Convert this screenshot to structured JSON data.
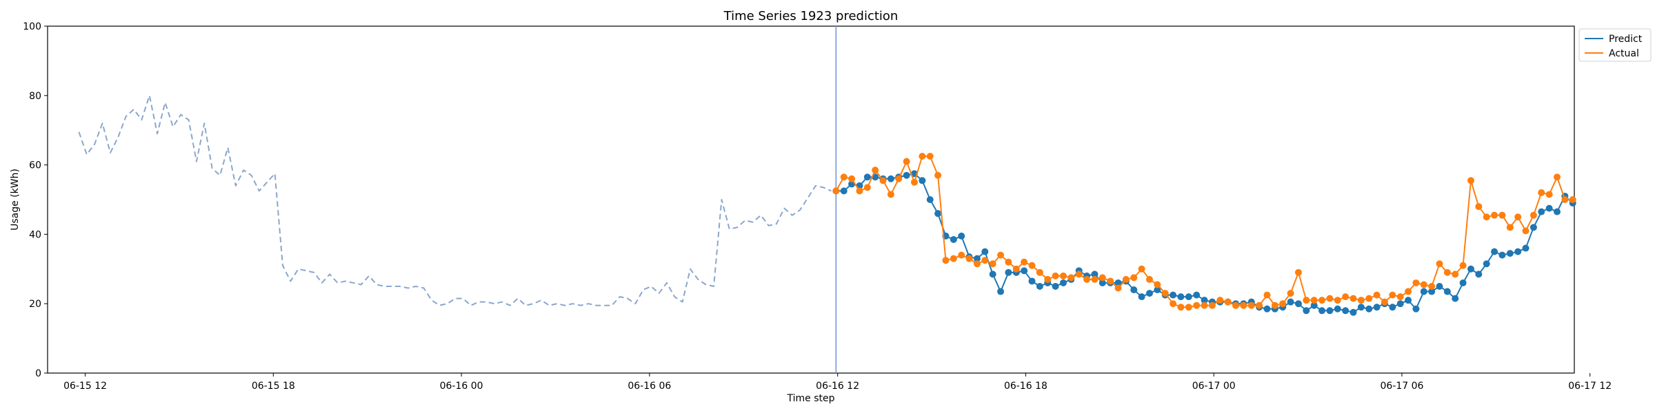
{
  "chart_data": {
    "type": "line",
    "title": "Time Series 1923 prediction",
    "xlabel": "Time step",
    "ylabel": "Usage (kWh)",
    "ylim": [
      0,
      100
    ],
    "yticks": [
      0,
      20,
      40,
      60,
      80,
      100
    ],
    "xlim_hours": [
      -1.2,
      47.5
    ],
    "xticks": [
      {
        "label": "06-15 12",
        "hour": 0
      },
      {
        "label": "06-15 18",
        "hour": 6
      },
      {
        "label": "06-16 00",
        "hour": 12
      },
      {
        "label": "06-16 06",
        "hour": 18
      },
      {
        "label": "06-16 12",
        "hour": 24
      },
      {
        "label": "06-16 18",
        "hour": 30
      },
      {
        "label": "06-17 00",
        "hour": 36
      },
      {
        "label": "06-17 06",
        "hour": 42
      },
      {
        "label": "06-17 12",
        "hour": 48
      }
    ],
    "forecast_start_hour": 23.95,
    "grid": false,
    "legend_position": "outside-top-right",
    "history": {
      "color": "#8aa6cc",
      "start_hour": -0.2,
      "step_hours": 0.25,
      "values": [
        69.5,
        63,
        66,
        72,
        63.5,
        68,
        74,
        76,
        73,
        80,
        69,
        78,
        71,
        74.5,
        73,
        61,
        72,
        59,
        57,
        65,
        54,
        58.5,
        57,
        52.5,
        55,
        57.5,
        31,
        26.5,
        30,
        29.5,
        29,
        26,
        28.5,
        26,
        26.5,
        26,
        25.5,
        28,
        25.5,
        25,
        25,
        25,
        24.5,
        25,
        24.5,
        21,
        19.5,
        20,
        21.5,
        21.5,
        19.5,
        20.5,
        20.5,
        20,
        20.5,
        19.5,
        21.5,
        19.5,
        20,
        21,
        19.5,
        20,
        19.5,
        20,
        19.5,
        20,
        19.5,
        19.5,
        19.5,
        22,
        21.5,
        20,
        24,
        25,
        23,
        26,
        22,
        20.5,
        30,
        27,
        25.5,
        25,
        50,
        41.5,
        42,
        44,
        43.5,
        45.5,
        42.5,
        43,
        47.5,
        45.5,
        47,
        50.5,
        54,
        53.5,
        52.5
      ]
    },
    "series": [
      {
        "name": "Predict",
        "color": "#1f77b4",
        "start_hour": 23.95,
        "step_hours": 0.25,
        "values": [
          52.5,
          52.5,
          54.5,
          54,
          56.5,
          56.5,
          56,
          56,
          56.5,
          57,
          57.5,
          55.5,
          50,
          46,
          39.5,
          38.5,
          39.5,
          33.5,
          33,
          35,
          28.5,
          23.5,
          29,
          29,
          29.5,
          26.5,
          25,
          26,
          25,
          26,
          27,
          29.5,
          28,
          28.5,
          26,
          26,
          26,
          26.5,
          24,
          22,
          23,
          24,
          22.5,
          22.5,
          22,
          22,
          22.5,
          21,
          20.5,
          20.5,
          20.5,
          20,
          20,
          20.5,
          19,
          18.5,
          18.5,
          19,
          20.5,
          20,
          18,
          19.5,
          18,
          18,
          18.5,
          18,
          17.5,
          19,
          18.5,
          19,
          20,
          19,
          20,
          21,
          18.5,
          23.5,
          23.5,
          25,
          23.5,
          21.5,
          26,
          30,
          28.5,
          31.5,
          35,
          34,
          34.5,
          35,
          36,
          42,
          46.5,
          47.5,
          46.5,
          51,
          49
        ]
      },
      {
        "name": "Actual",
        "color": "#ff7f0e",
        "start_hour": 23.95,
        "step_hours": 0.25,
        "values": [
          52.5,
          56.5,
          56,
          52.5,
          53.5,
          58.5,
          55.5,
          51.5,
          56,
          61,
          55,
          62.5,
          62.5,
          57,
          32.5,
          33,
          34,
          33,
          31.5,
          32.5,
          31.5,
          34,
          32,
          30,
          32,
          31,
          29,
          27,
          28,
          28,
          27.5,
          28.5,
          27,
          27,
          27.5,
          26.5,
          24.5,
          27,
          27.5,
          30,
          27,
          25.5,
          23,
          20,
          19,
          19,
          19.5,
          19.5,
          19.5,
          21,
          20.5,
          19.5,
          19.5,
          19.5,
          19.5,
          22.5,
          19.5,
          20,
          23,
          29,
          21,
          21,
          21,
          21.5,
          21,
          22,
          21.5,
          21,
          21.5,
          22.5,
          20.5,
          22.5,
          22,
          23.5,
          26,
          25.5,
          25,
          31.5,
          29,
          28.5,
          31,
          55.5,
          48,
          45,
          45.5,
          45.5,
          42,
          45,
          41,
          45.5,
          52,
          51.5,
          56.5,
          50,
          50
        ]
      }
    ]
  }
}
